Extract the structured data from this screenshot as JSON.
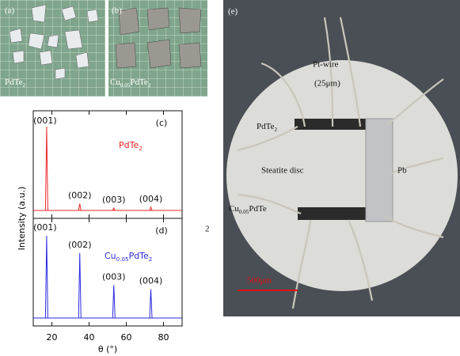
{
  "photos": {
    "a": {
      "label": "(a)",
      "caption": [
        "PdTe",
        "2"
      ]
    },
    "b": {
      "label": "(b)",
      "caption": [
        "Cu",
        "0.05",
        "PdTe",
        "2"
      ]
    },
    "e": {
      "label": "(e)",
      "wire": "Pt-wire",
      "wire_size": "(25μm)",
      "sample1": [
        "PdTe",
        "2"
      ],
      "disc": "Steatite disc",
      "contact": "Pb",
      "sample2": [
        "Cu",
        "0.05",
        "PdTe"
      ],
      "scale": "500μm"
    }
  },
  "stray_text": "2",
  "chart_data": [
    {
      "type": "stem",
      "panel_label": "(c)",
      "ylabel": "Intensity (a.u.)",
      "legend": [
        "PdTe",
        "2"
      ],
      "color": "#e8262a",
      "x": [
        17.2,
        35.0,
        53.3,
        73.2
      ],
      "values": [
        100,
        8,
        3,
        4
      ],
      "peak_labels": [
        "(001)",
        "(002)",
        "(003)",
        "(004)"
      ],
      "xlim": [
        10,
        90
      ],
      "xticks": [
        20,
        40,
        60,
        80
      ],
      "ylim": [
        0,
        100
      ]
    },
    {
      "type": "stem",
      "panel_label": "(d)",
      "xlabel": "θ (°)",
      "legend": [
        "Cu",
        "0.05",
        "PdTe",
        "2"
      ],
      "color": "#2a2ae0",
      "x": [
        17.2,
        35.0,
        53.3,
        73.2
      ],
      "values": [
        100,
        79,
        40,
        35
      ],
      "peak_labels": [
        "(001)",
        "(002)",
        "(003)",
        "(004)"
      ],
      "xlim": [
        10,
        90
      ],
      "xticks": [
        20,
        40,
        60,
        80
      ],
      "ylim": [
        0,
        100
      ]
    }
  ]
}
